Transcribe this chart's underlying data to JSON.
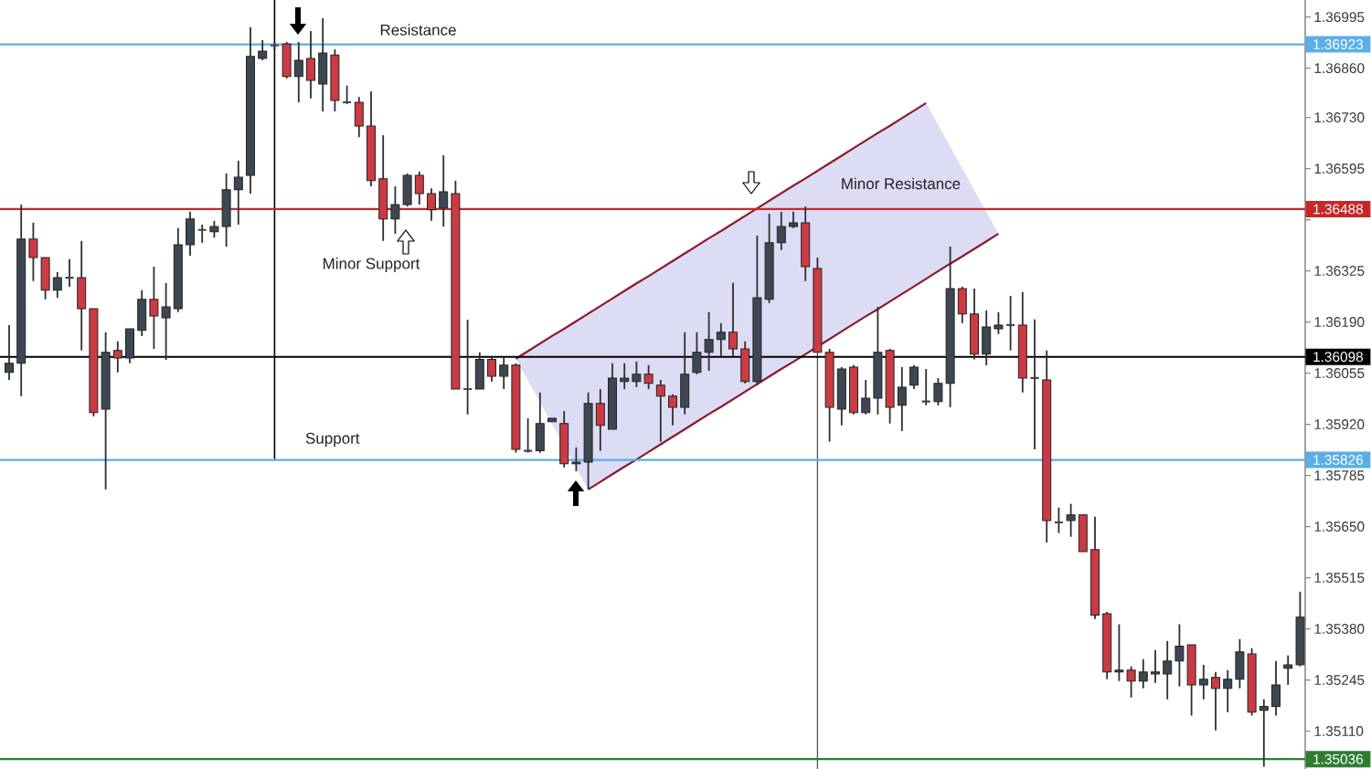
{
  "chart_data": {
    "type": "candlestick",
    "categories": [
      null,
      null,
      null,
      null,
      null,
      null,
      null,
      null,
      null,
      null,
      null,
      null,
      null,
      null,
      null,
      null,
      null,
      null,
      null,
      null,
      null,
      null,
      null,
      null,
      null,
      null,
      null,
      null,
      null,
      null,
      null,
      null,
      null,
      null,
      null,
      null,
      null,
      null,
      null,
      null,
      null,
      null,
      null,
      null,
      null,
      null,
      null,
      null,
      null,
      null,
      null,
      null,
      null,
      null,
      null,
      null,
      null,
      null,
      null,
      null,
      null,
      null,
      null,
      null,
      null,
      null,
      null,
      null,
      null,
      null,
      null,
      null,
      null,
      null,
      null,
      null,
      null,
      null,
      null,
      null,
      null,
      null,
      null,
      null,
      null,
      null,
      null,
      null,
      null,
      null,
      null,
      null,
      null,
      null,
      null,
      null,
      null,
      null,
      null,
      null,
      null,
      null,
      null,
      null,
      null,
      null,
      null,
      null
    ],
    "ohlc": [
      [
        1.36057,
        1.36182,
        1.36037,
        1.36081
      ],
      [
        1.36081,
        1.365,
        1.35994,
        1.36409
      ],
      [
        1.36409,
        1.36452,
        1.36298,
        1.3636
      ],
      [
        1.3636,
        1.3636,
        1.3625,
        1.36274
      ],
      [
        1.36274,
        1.36322,
        1.36254,
        1.36307
      ],
      [
        1.36307,
        1.36356,
        1.36283,
        1.36307
      ],
      [
        1.36307,
        1.36404,
        1.36115,
        1.36225
      ],
      [
        1.36225,
        1.36225,
        1.35941,
        1.35951
      ],
      [
        1.3596,
        1.36163,
        1.35748,
        1.3611
      ],
      [
        1.36115,
        1.36139,
        1.36057,
        1.36095
      ],
      [
        1.36095,
        1.36172,
        1.36081,
        1.36172
      ],
      [
        1.36168,
        1.36274,
        1.36153,
        1.3625
      ],
      [
        1.3625,
        1.36336,
        1.36119,
        1.36206
      ],
      [
        1.36201,
        1.36293,
        1.3609,
        1.3623
      ],
      [
        1.36225,
        1.36438,
        1.36216,
        1.36394
      ],
      [
        1.36394,
        1.36481,
        1.36365,
        1.36462
      ],
      [
        1.36433,
        1.36447,
        1.36399,
        1.36433
      ],
      [
        1.36428,
        1.36457,
        1.36413,
        1.36442
      ],
      [
        1.36442,
        1.36582,
        1.36389,
        1.36539
      ],
      [
        1.36539,
        1.36616,
        1.36447,
        1.36572
      ],
      [
        1.36577,
        1.36968,
        1.36529,
        1.36891
      ],
      [
        1.36886,
        1.36934,
        1.36881,
        1.36905
      ],
      [
        1.3692,
        1.36929,
        1.3691,
        1.3692
      ],
      [
        1.36924,
        1.36929,
        1.36833,
        1.36838
      ],
      [
        1.36838,
        1.36929,
        1.3677,
        1.36881
      ],
      [
        1.36886,
        1.36958,
        1.3678,
        1.36828
      ],
      [
        1.36818,
        1.36992,
        1.36746,
        1.369
      ],
      [
        1.36895,
        1.3691,
        1.36746,
        1.36775
      ],
      [
        1.3677,
        1.36814,
        1.36765,
        1.3677
      ],
      [
        1.3677,
        1.36784,
        1.36678,
        1.36707
      ],
      [
        1.36707,
        1.36799,
        1.36548,
        1.36563
      ],
      [
        1.36568,
        1.36683,
        1.36404,
        1.36462
      ],
      [
        1.36462,
        1.36548,
        1.36423,
        1.365
      ],
      [
        1.365,
        1.36582,
        1.36495,
        1.36577
      ],
      [
        1.36577,
        1.36587,
        1.365,
        1.36529
      ],
      [
        1.36529,
        1.36543,
        1.36457,
        1.36486
      ],
      [
        1.36491,
        1.3663,
        1.36442,
        1.36534
      ],
      [
        1.36529,
        1.36563,
        1.36013,
        1.36013
      ],
      [
        1.36013,
        1.36196,
        1.35946,
        1.36013
      ],
      [
        1.36013,
        1.3611,
        1.36013,
        1.36091
      ],
      [
        1.36091,
        1.36095,
        1.36033,
        1.36047
      ],
      [
        1.36047,
        1.36095,
        1.36013,
        1.36076
      ],
      [
        1.36076,
        1.36081,
        1.35845,
        1.35854
      ],
      [
        1.3585,
        1.35936,
        1.35845,
        1.3585
      ],
      [
        1.3585,
        1.36004,
        1.35845,
        1.35922
      ],
      [
        1.35927,
        1.35936,
        1.35927,
        1.35936
      ],
      [
        1.35922,
        1.35955,
        1.35806,
        1.35816
      ],
      [
        1.35816,
        1.35859,
        1.35796,
        1.3582
      ],
      [
        1.3582,
        1.36004,
        1.35748,
        1.35975
      ],
      [
        1.35975,
        1.36013,
        1.3585,
        1.35917
      ],
      [
        1.35907,
        1.36081,
        1.35907,
        1.36042
      ],
      [
        1.36033,
        1.36081,
        1.36013,
        1.36042
      ],
      [
        1.36033,
        1.36086,
        1.36018,
        1.36052
      ],
      [
        1.36052,
        1.36076,
        1.36013,
        1.36028
      ],
      [
        1.36023,
        1.36037,
        1.35874,
        1.35994
      ],
      [
        1.35994,
        1.35999,
        1.35917,
        1.35965
      ],
      [
        1.35965,
        1.36163,
        1.35946,
        1.36052
      ],
      [
        1.36057,
        1.36163,
        1.36052,
        1.3611
      ],
      [
        1.3611,
        1.36216,
        1.36061,
        1.36144
      ],
      [
        1.36144,
        1.36187,
        1.361,
        1.36163
      ],
      [
        1.36163,
        1.36293,
        1.361,
        1.36119
      ],
      [
        1.36119,
        1.36139,
        1.36028,
        1.36033
      ],
      [
        1.36033,
        1.36418,
        1.36023,
        1.36254
      ],
      [
        1.3625,
        1.36476,
        1.3624,
        1.36399
      ],
      [
        1.36399,
        1.36481,
        1.3638,
        1.36442
      ],
      [
        1.36442,
        1.36481,
        1.36438,
        1.36452
      ],
      [
        1.36452,
        1.36495,
        1.36298,
        1.36336
      ],
      [
        1.36331,
        1.3636,
        1.3611,
        1.3611
      ],
      [
        1.3611,
        1.36119,
        1.35874,
        1.35965
      ],
      [
        1.3596,
        1.36071,
        1.35917,
        1.36066
      ],
      [
        1.36071,
        1.36076,
        1.35946,
        1.35951
      ],
      [
        1.35951,
        1.36037,
        1.35946,
        1.35989
      ],
      [
        1.35989,
        1.3623,
        1.35946,
        1.3611
      ],
      [
        1.36115,
        1.36119,
        1.35922,
        1.35965
      ],
      [
        1.3597,
        1.36071,
        1.35902,
        1.36018
      ],
      [
        1.36023,
        1.36076,
        1.36013,
        1.36071
      ],
      [
        1.3598,
        1.36066,
        1.3597,
        1.3598
      ],
      [
        1.3598,
        1.36042,
        1.3597,
        1.36028
      ],
      [
        1.36028,
        1.36389,
        1.35965,
        1.36278
      ],
      [
        1.36278,
        1.36283,
        1.36187,
        1.36211
      ],
      [
        1.36211,
        1.36278,
        1.36091,
        1.36105
      ],
      [
        1.36105,
        1.36221,
        1.36076,
        1.36177
      ],
      [
        1.36172,
        1.36216,
        1.36158,
        1.36182
      ],
      [
        1.36182,
        1.36259,
        1.36115,
        1.36182
      ],
      [
        1.36182,
        1.36269,
        1.36004,
        1.36042
      ],
      [
        1.36042,
        1.36197,
        1.35854,
        1.36042
      ],
      [
        1.36037,
        1.36115,
        1.35608,
        1.35666
      ],
      [
        1.35661,
        1.357,
        1.35633,
        1.35661
      ],
      [
        1.35666,
        1.3571,
        1.35623,
        1.35681
      ],
      [
        1.35681,
        1.35681,
        1.35584,
        1.35584
      ],
      [
        1.35589,
        1.35676,
        1.35406,
        1.35416
      ],
      [
        1.3542,
        1.35425,
        1.35247,
        1.35266
      ],
      [
        1.35266,
        1.35392,
        1.35242,
        1.35271
      ],
      [
        1.35271,
        1.35281,
        1.35199,
        1.35242
      ],
      [
        1.35242,
        1.353,
        1.35223,
        1.35266
      ],
      [
        1.35261,
        1.35324,
        1.35237,
        1.35266
      ],
      [
        1.35261,
        1.35348,
        1.35194,
        1.35295
      ],
      [
        1.35295,
        1.35392,
        1.35228,
        1.35334
      ],
      [
        1.35338,
        1.35338,
        1.35151,
        1.35232
      ],
      [
        1.35232,
        1.35285,
        1.35194,
        1.35247
      ],
      [
        1.35252,
        1.35266,
        1.35112,
        1.35223
      ],
      [
        1.35223,
        1.35271,
        1.3516,
        1.35247
      ],
      [
        1.35247,
        1.35353,
        1.35223,
        1.35319
      ],
      [
        1.35314,
        1.35329,
        1.35151,
        1.3516
      ],
      [
        1.35165,
        1.35194,
        1.35016,
        1.35175
      ],
      [
        1.35175,
        1.35295,
        1.35151,
        1.35232
      ],
      [
        1.35276,
        1.3531,
        1.35232,
        1.35285
      ],
      [
        1.35285,
        1.35478,
        1.35281,
        1.35411
      ]
    ],
    "colors": [
      "#3d4752",
      "#3d4752",
      "#cc3a44",
      "#cc3a44",
      "#3d4752",
      "#3d4752",
      "#cc3a44",
      "#cc3a44",
      "#3d4752",
      "#cc3a44",
      "#3d4752",
      "#3d4752",
      "#cc3a44",
      "#3d4752",
      "#3d4752",
      "#3d4752",
      "#3d4752",
      "#3d4752",
      "#3d4752",
      "#3d4752",
      "#3d4752",
      "#3d4752",
      "#3d4752",
      "#cc3a44",
      "#3d4752",
      "#cc3a44",
      "#3d4752",
      "#cc3a44",
      "#3d4752",
      "#cc3a44",
      "#cc3a44",
      "#cc3a44",
      "#3d4752",
      "#3d4752",
      "#cc3a44",
      "#cc3a44",
      "#3d4752",
      "#cc3a44",
      "#3d4752",
      "#3d4752",
      "#cc3a44",
      "#3d4752",
      "#cc3a44",
      "#3d4752",
      "#3d4752",
      "#3d4752",
      "#cc3a44",
      "#3d4752",
      "#3d4752",
      "#cc3a44",
      "#3d4752",
      "#3d4752",
      "#3d4752",
      "#cc3a44",
      "#cc3a44",
      "#cc3a44",
      "#3d4752",
      "#3d4752",
      "#3d4752",
      "#3d4752",
      "#cc3a44",
      "#cc3a44",
      "#3d4752",
      "#3d4752",
      "#3d4752",
      "#3d4752",
      "#cc3a44",
      "#cc3a44",
      "#cc3a44",
      "#3d4752",
      "#cc3a44",
      "#3d4752",
      "#3d4752",
      "#cc3a44",
      "#3d4752",
      "#3d4752",
      "#3d4752",
      "#3d4752",
      "#3d4752",
      "#cc3a44",
      "#cc3a44",
      "#3d4752",
      "#3d4752",
      "#3d4752",
      "#cc3a44",
      "#3d4752",
      "#cc3a44",
      "#3d4752",
      "#3d4752",
      "#cc3a44",
      "#cc3a44",
      "#cc3a44",
      "#3d4752",
      "#cc3a44",
      "#3d4752",
      "#3d4752",
      "#3d4752",
      "#3d4752",
      "#cc3a44",
      "#3d4752",
      "#cc3a44",
      "#3d4752",
      "#3d4752",
      "#cc3a44",
      "#3d4752",
      "#3d4752",
      "#3d4752",
      "#3d4752"
    ],
    "series": [
      {
        "type": "line",
        "color": "#8b1a2b",
        "values": [
          null,
          null,
          null,
          null,
          null,
          null,
          null,
          null,
          null,
          null,
          null,
          null,
          null,
          null,
          null,
          null,
          null,
          null,
          null,
          null,
          null,
          null,
          null,
          null,
          null,
          null,
          null,
          null,
          null,
          null,
          null,
          null,
          null,
          null,
          null,
          null,
          null,
          null,
          null,
          null,
          null,
          null,
          1.36093,
          1.36113,
          1.36133,
          1.36153,
          1.36172,
          1.36192,
          1.36212,
          1.36232,
          1.36252,
          1.36272,
          1.36292,
          1.36311,
          1.36331,
          1.36351,
          1.36371,
          1.36391,
          1.36411,
          1.3643,
          1.3645,
          1.3647,
          1.3649,
          1.3651,
          1.3653,
          1.3655,
          1.36569,
          1.36589,
          1.36609,
          1.36629,
          1.36649,
          1.36669,
          1.36689,
          1.36708,
          1.36728,
          1.36748,
          1.36768,
          null,
          null,
          null,
          null,
          null,
          null,
          null,
          null,
          null,
          null,
          null,
          null,
          null,
          null,
          null,
          null,
          null,
          null,
          null,
          null,
          null,
          null,
          null,
          null,
          null,
          null,
          null,
          null,
          null,
          null,
          null
        ]
      },
      {
        "type": "line",
        "color": "#8b1a2b",
        "values": [
          null,
          null,
          null,
          null,
          null,
          null,
          null,
          null,
          null,
          null,
          null,
          null,
          null,
          null,
          null,
          null,
          null,
          null,
          null,
          null,
          null,
          null,
          null,
          null,
          null,
          null,
          null,
          null,
          null,
          null,
          null,
          null,
          null,
          null,
          null,
          null,
          null,
          null,
          null,
          null,
          null,
          null,
          null,
          null,
          null,
          null,
          null,
          null,
          1.35748,
          1.35768,
          1.35788,
          1.35808,
          1.35827,
          1.35847,
          1.35867,
          1.35887,
          1.35907,
          1.35927,
          1.35947,
          1.35966,
          1.35986,
          1.36006,
          1.36026,
          1.36046,
          1.36066,
          1.36085,
          1.36105,
          1.36125,
          1.36145,
          1.36165,
          1.36185,
          1.36205,
          1.36224,
          1.36244,
          1.36264,
          1.36284,
          1.36304,
          1.36324,
          1.36344,
          1.36363,
          1.36383,
          1.36403,
          1.36423,
          null,
          null,
          null,
          null,
          null,
          null,
          null,
          null,
          null,
          null,
          null,
          null,
          null,
          null,
          null,
          null,
          null,
          null,
          null,
          null,
          null,
          null,
          null,
          null,
          null
        ]
      }
    ],
    "ylim": [
      1.3501,
      1.3704
    ],
    "yticks": [
      {
        "value": 1.3511,
        "label": "1.35110"
      },
      1.35245,
      {
        "value": 1.3538,
        "label": "1.35380"
      },
      1.35515,
      {
        "value": 1.3565,
        "label": "1.35650"
      },
      1.35785,
      {
        "value": 1.3592,
        "label": "1.35920"
      },
      1.36055,
      {
        "value": 1.3619,
        "label": "1.36190"
      },
      1.36325,
      {
        "value": 1.3646,
        "label": null
      },
      1.36595,
      {
        "value": 1.3673,
        "label": "1.36730"
      },
      {
        "value": 1.3686,
        "label": "1.36860"
      },
      1.36995
    ],
    "tick_labels": "y",
    "ref_lines": [
      {
        "axis": "y",
        "value": 1.36923,
        "label": "1.36923",
        "color": "#5aaee6"
      },
      {
        "axis": "y",
        "value": 1.36488,
        "label": "1.36488",
        "color": "#c62828"
      },
      {
        "axis": "y",
        "value": 1.36098,
        "label": "1.36098",
        "color": "#000000"
      },
      {
        "axis": "y",
        "value": 1.35826,
        "label": "1.35826",
        "color": "#5aaee6"
      },
      {
        "axis": "y",
        "value": 1.35036,
        "label": "1.35036",
        "color": "#2e7d32"
      }
    ],
    "annotations": [
      {
        "text": "Resistance",
        "y": 1.36923
      },
      {
        "text": "Minor Resistance",
        "y": 1.36488
      },
      "Minor Support",
      {
        "text": "Support",
        "y": 1.35826
      }
    ]
  }
}
